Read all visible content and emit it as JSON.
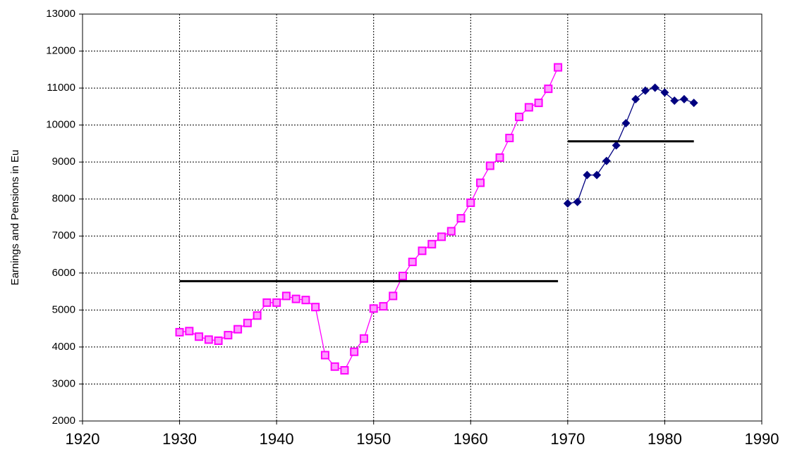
{
  "chart_data": {
    "type": "line",
    "y_label": "Earnings and Pensions in Eu",
    "xlim": [
      1920,
      1990
    ],
    "xticks": [
      1920,
      1930,
      1940,
      1950,
      1960,
      1970,
      1980,
      1990
    ],
    "ylim": [
      2000,
      13000
    ],
    "yticks": [
      2000,
      3000,
      4000,
      5000,
      6000,
      7000,
      8000,
      9000,
      10000,
      11000,
      12000,
      13000
    ],
    "grid": true,
    "series": [
      {
        "color": "#ff00ff",
        "marker": "square",
        "x": [
          1930,
          1931,
          1932,
          1933,
          1934,
          1935,
          1936,
          1937,
          1938,
          1939,
          1940,
          1941,
          1942,
          1943,
          1944,
          1945,
          1946,
          1947,
          1948,
          1949,
          1950,
          1951,
          1952,
          1953,
          1954,
          1955,
          1956,
          1957,
          1958,
          1959,
          1960,
          1961,
          1962,
          1963,
          1964,
          1965,
          1966,
          1967,
          1968,
          1969
        ],
        "values": [
          4400,
          4430,
          4280,
          4200,
          4170,
          4320,
          4480,
          4650,
          4850,
          5200,
          5200,
          5380,
          5300,
          5270,
          5080,
          3780,
          3470,
          3370,
          3870,
          4230,
          5040,
          5100,
          5380,
          5920,
          6300,
          6600,
          6780,
          6980,
          7130,
          7480,
          7900,
          8440,
          8900,
          9120,
          9650,
          10220,
          10480,
          10600,
          10980,
          11560
        ]
      },
      {
        "color": "#000080",
        "marker": "diamond",
        "x": [
          1970,
          1971,
          1972,
          1973,
          1974,
          1975,
          1976,
          1977,
          1978,
          1979,
          1980,
          1981,
          1982,
          1983
        ],
        "values": [
          7880,
          7920,
          8650,
          8650,
          9030,
          9450,
          10050,
          10700,
          10930,
          11010,
          10880,
          10660,
          10700,
          10600
        ]
      },
      {
        "color": "#000000",
        "marker": "none",
        "x": [
          1930,
          1969
        ],
        "values": [
          5780,
          5780
        ]
      },
      {
        "color": "#000000",
        "marker": "none",
        "x": [
          1970,
          1983
        ],
        "values": [
          9560,
          9560
        ]
      }
    ]
  }
}
